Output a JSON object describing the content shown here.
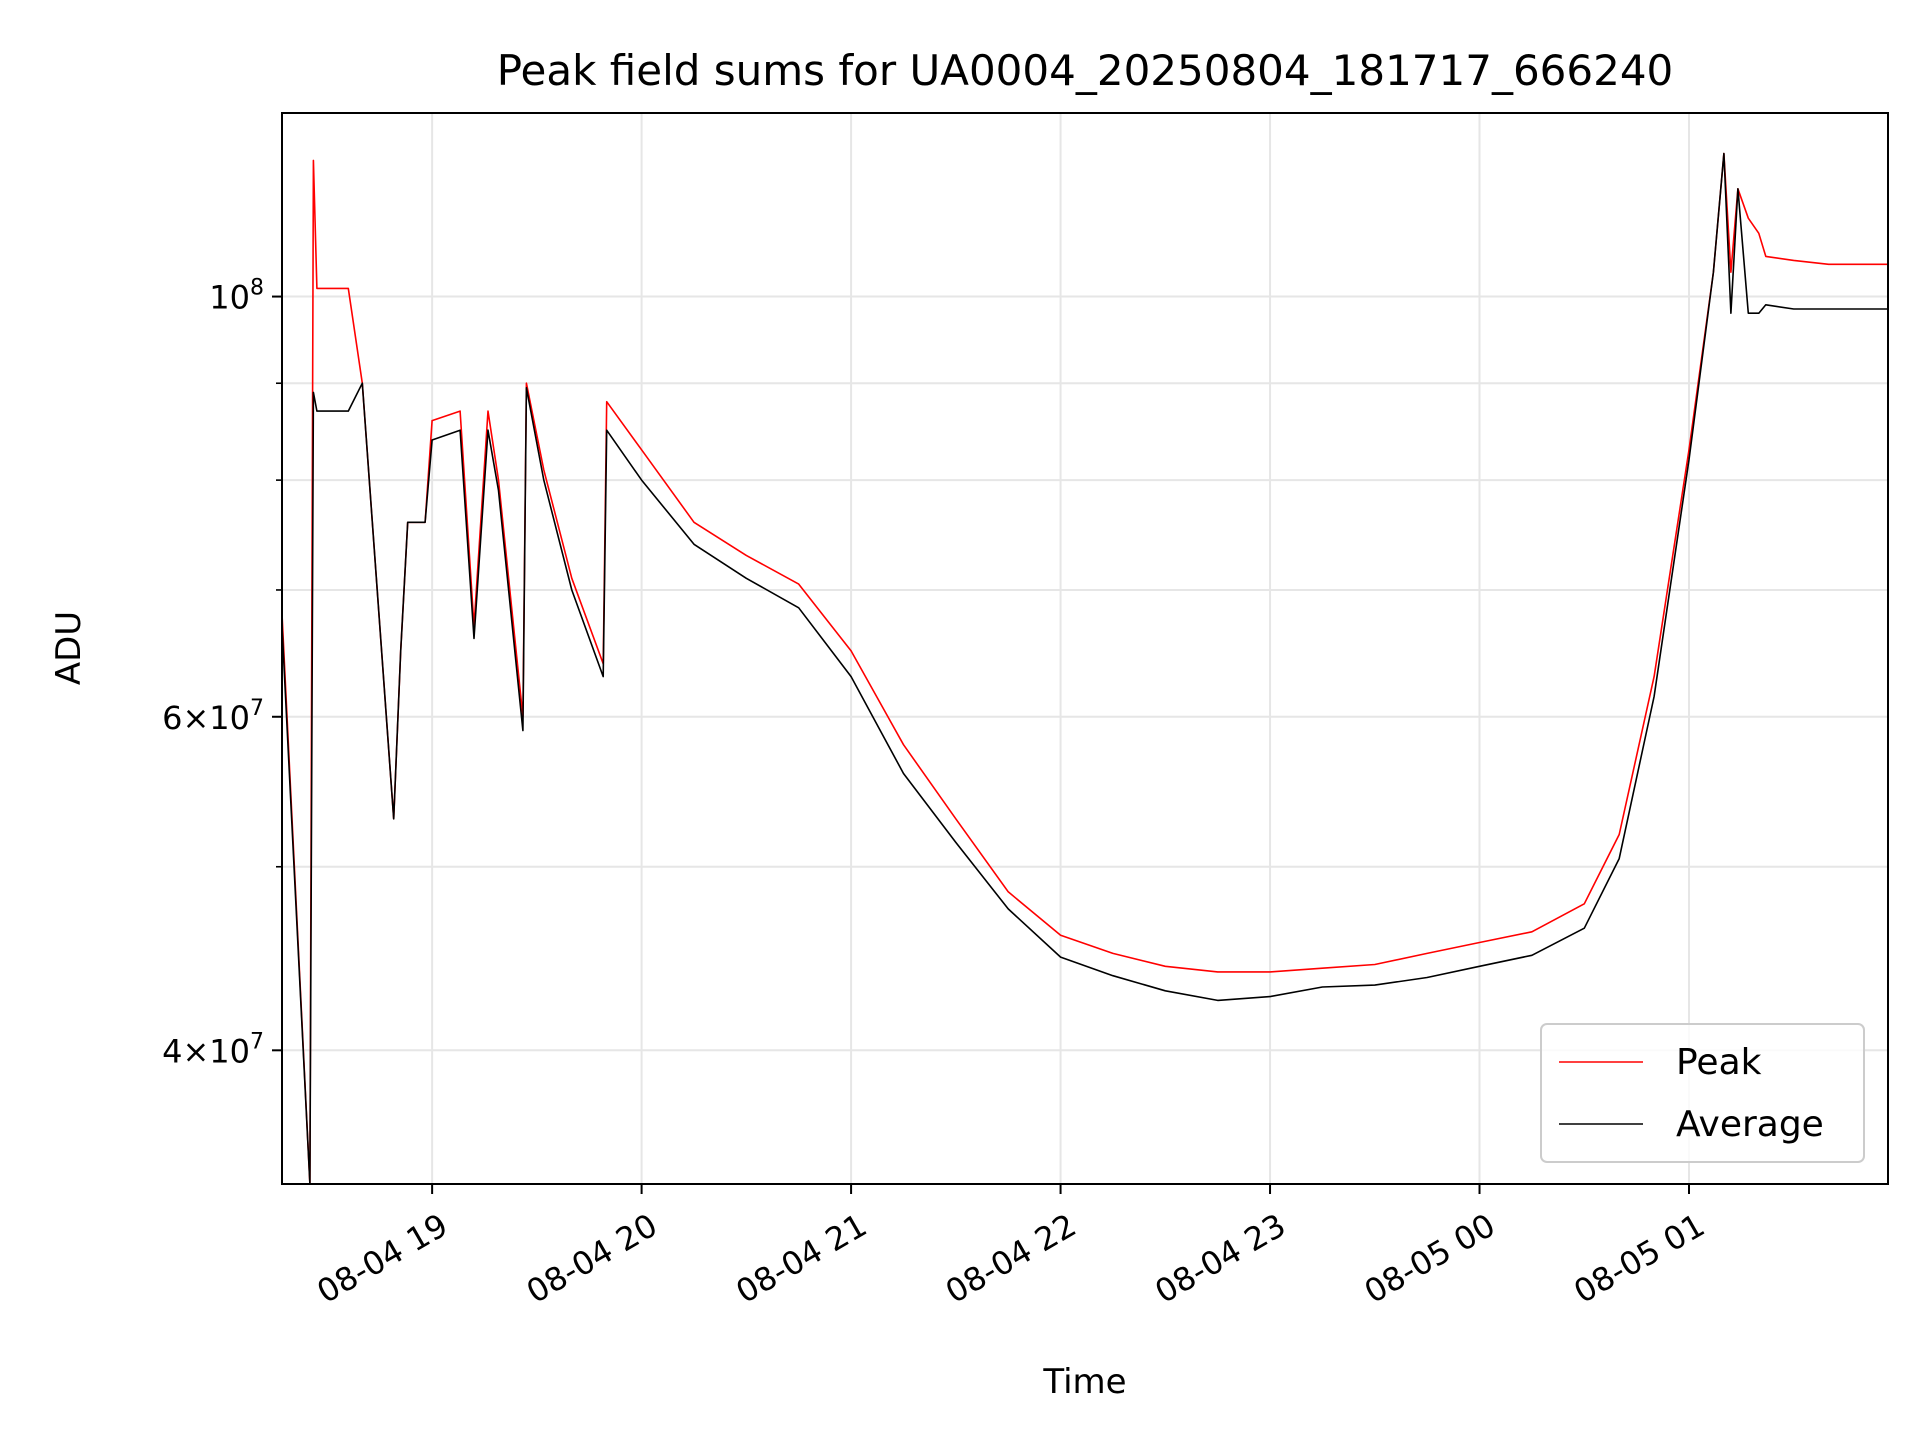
{
  "chart_data": {
    "type": "line",
    "title": "Peak field sums for UA0004_20250804_181717_666240",
    "xlabel": "Time",
    "ylabel": "ADU",
    "yscale": "log",
    "grid": true,
    "legend": "lower right",
    "x_range": [
      "2025-08-04 18:17",
      "2025-08-05 01:57"
    ],
    "ylim": [
      34000000,
      125000000
    ],
    "x_ticks": [
      {
        "value": "2025-08-04 19:00",
        "label": "08-04 19"
      },
      {
        "value": "2025-08-04 20:00",
        "label": "08-04 20"
      },
      {
        "value": "2025-08-04 21:00",
        "label": "08-04 21"
      },
      {
        "value": "2025-08-04 22:00",
        "label": "08-04 22"
      },
      {
        "value": "2025-08-04 23:00",
        "label": "08-04 23"
      },
      {
        "value": "2025-08-05 00:00",
        "label": "08-05 00"
      },
      {
        "value": "2025-08-05 01:00",
        "label": "08-05 01"
      }
    ],
    "y_ticks": [
      {
        "value": 40000000,
        "base": "4×10",
        "exp": "7"
      },
      {
        "value": 60000000,
        "base": "6×10",
        "exp": "7"
      },
      {
        "value": 100000000,
        "base": "10",
        "exp": "8"
      }
    ],
    "y_minor_ticks": [
      50000000,
      70000000,
      80000000,
      90000000
    ],
    "series": [
      {
        "name": "Peak",
        "color": "#ff0000",
        "points": [
          [
            "2025-08-04 18:17",
            68000000
          ],
          [
            "2025-08-04 18:25",
            34000000
          ],
          [
            "2025-08-04 18:26",
            118000000
          ],
          [
            "2025-08-04 18:27",
            101000000
          ],
          [
            "2025-08-04 18:36",
            101000000
          ],
          [
            "2025-08-04 18:40",
            90000000
          ],
          [
            "2025-08-04 18:49",
            53000000
          ],
          [
            "2025-08-04 18:51",
            65000000
          ],
          [
            "2025-08-04 18:53",
            76000000
          ],
          [
            "2025-08-04 18:58",
            76000000
          ],
          [
            "2025-08-04 19:00",
            86000000
          ],
          [
            "2025-08-04 19:08",
            87000000
          ],
          [
            "2025-08-04 19:12",
            67000000
          ],
          [
            "2025-08-04 19:16",
            87000000
          ],
          [
            "2025-08-04 19:19",
            80000000
          ],
          [
            "2025-08-04 19:26",
            60000000
          ],
          [
            "2025-08-04 19:27",
            90000000
          ],
          [
            "2025-08-04 19:32",
            81000000
          ],
          [
            "2025-08-04 19:40",
            71000000
          ],
          [
            "2025-08-04 19:49",
            64000000
          ],
          [
            "2025-08-04 19:50",
            88000000
          ],
          [
            "2025-08-04 20:00",
            83000000
          ],
          [
            "2025-08-04 20:15",
            76000000
          ],
          [
            "2025-08-04 20:30",
            73000000
          ],
          [
            "2025-08-04 20:45",
            70500000
          ],
          [
            "2025-08-04 21:00",
            65000000
          ],
          [
            "2025-08-04 21:15",
            58000000
          ],
          [
            "2025-08-04 21:30",
            53000000
          ],
          [
            "2025-08-04 21:45",
            48500000
          ],
          [
            "2025-08-04 22:00",
            46000000
          ],
          [
            "2025-08-04 22:15",
            45000000
          ],
          [
            "2025-08-04 22:30",
            44300000
          ],
          [
            "2025-08-04 22:45",
            44000000
          ],
          [
            "2025-08-04 23:00",
            44000000
          ],
          [
            "2025-08-04 23:15",
            44200000
          ],
          [
            "2025-08-04 23:30",
            44400000
          ],
          [
            "2025-08-04 23:45",
            45000000
          ],
          [
            "2025-08-05 00:00",
            45600000
          ],
          [
            "2025-08-05 00:15",
            46200000
          ],
          [
            "2025-08-05 00:30",
            47800000
          ],
          [
            "2025-08-05 00:40",
            52000000
          ],
          [
            "2025-08-05 00:50",
            63000000
          ],
          [
            "2025-08-05 01:00",
            83000000
          ],
          [
            "2025-08-05 01:07",
            103000000
          ],
          [
            "2025-08-05 01:10",
            119000000
          ],
          [
            "2025-08-05 01:12",
            103000000
          ],
          [
            "2025-08-05 01:14",
            114000000
          ],
          [
            "2025-08-05 01:17",
            110000000
          ],
          [
            "2025-08-05 01:20",
            108000000
          ],
          [
            "2025-08-05 01:22",
            105000000
          ],
          [
            "2025-08-05 01:30",
            104500000
          ],
          [
            "2025-08-05 01:40",
            104000000
          ],
          [
            "2025-08-05 01:57",
            104000000
          ]
        ]
      },
      {
        "name": "Average",
        "color": "#000000",
        "points": [
          [
            "2025-08-04 18:17",
            67000000
          ],
          [
            "2025-08-04 18:25",
            34000000
          ],
          [
            "2025-08-04 18:26",
            89000000
          ],
          [
            "2025-08-04 18:27",
            87000000
          ],
          [
            "2025-08-04 18:36",
            87000000
          ],
          [
            "2025-08-04 18:40",
            90000000
          ],
          [
            "2025-08-04 18:49",
            53000000
          ],
          [
            "2025-08-04 18:51",
            65000000
          ],
          [
            "2025-08-04 18:53",
            76000000
          ],
          [
            "2025-08-04 18:58",
            76000000
          ],
          [
            "2025-08-04 19:00",
            84000000
          ],
          [
            "2025-08-04 19:08",
            85000000
          ],
          [
            "2025-08-04 19:12",
            66000000
          ],
          [
            "2025-08-04 19:16",
            85000000
          ],
          [
            "2025-08-04 19:19",
            79000000
          ],
          [
            "2025-08-04 19:26",
            59000000
          ],
          [
            "2025-08-04 19:27",
            89500000
          ],
          [
            "2025-08-04 19:32",
            80000000
          ],
          [
            "2025-08-04 19:40",
            70000000
          ],
          [
            "2025-08-04 19:49",
            63000000
          ],
          [
            "2025-08-04 19:50",
            85000000
          ],
          [
            "2025-08-04 20:00",
            80000000
          ],
          [
            "2025-08-04 20:15",
            74000000
          ],
          [
            "2025-08-04 20:30",
            71000000
          ],
          [
            "2025-08-04 20:45",
            68500000
          ],
          [
            "2025-08-04 21:00",
            63000000
          ],
          [
            "2025-08-04 21:15",
            56000000
          ],
          [
            "2025-08-04 21:30",
            51500000
          ],
          [
            "2025-08-04 21:45",
            47500000
          ],
          [
            "2025-08-04 22:00",
            44800000
          ],
          [
            "2025-08-04 22:15",
            43800000
          ],
          [
            "2025-08-04 22:30",
            43000000
          ],
          [
            "2025-08-04 22:45",
            42500000
          ],
          [
            "2025-08-04 23:00",
            42700000
          ],
          [
            "2025-08-04 23:15",
            43200000
          ],
          [
            "2025-08-04 23:30",
            43300000
          ],
          [
            "2025-08-04 23:45",
            43700000
          ],
          [
            "2025-08-05 00:00",
            44300000
          ],
          [
            "2025-08-05 00:15",
            44900000
          ],
          [
            "2025-08-05 00:30",
            46400000
          ],
          [
            "2025-08-05 00:40",
            50500000
          ],
          [
            "2025-08-05 00:50",
            61500000
          ],
          [
            "2025-08-05 01:00",
            82000000
          ],
          [
            "2025-08-05 01:07",
            103000000
          ],
          [
            "2025-08-05 01:10",
            119000000
          ],
          [
            "2025-08-05 01:12",
            98000000
          ],
          [
            "2025-08-05 01:14",
            114000000
          ],
          [
            "2025-08-05 01:17",
            98000000
          ],
          [
            "2025-08-05 01:20",
            98000000
          ],
          [
            "2025-08-05 01:22",
            99000000
          ],
          [
            "2025-08-05 01:30",
            98500000
          ],
          [
            "2025-08-05 01:40",
            98500000
          ],
          [
            "2025-08-05 01:57",
            98500000
          ]
        ]
      }
    ]
  }
}
